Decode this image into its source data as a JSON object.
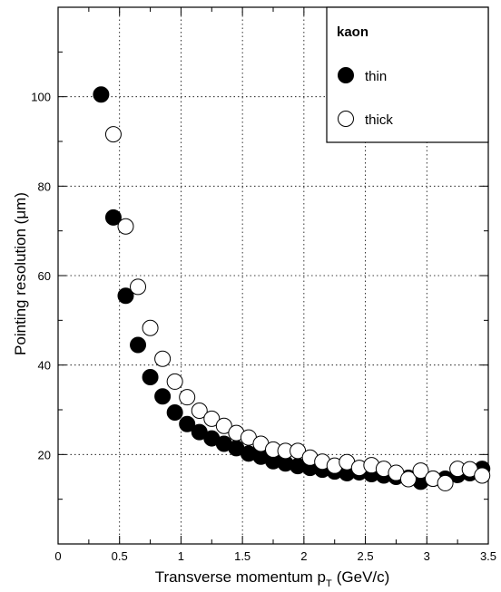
{
  "chart_data": {
    "type": "scatter",
    "title": "",
    "xlabel": "Transverse momentum p",
    "xlabel_sub": "T",
    "xlabel_unit": "(GeV/c)",
    "ylabel": "Pointing resolution (μm)",
    "xlim": [
      0,
      3.5
    ],
    "ylim": [
      0,
      120
    ],
    "x_ticks": [
      "0",
      "0.5",
      "1",
      "1.5",
      "2",
      "2.5",
      "3",
      "3.5"
    ],
    "y_ticks": [
      "20",
      "40",
      "60",
      "80",
      "100"
    ],
    "grid": true,
    "grid_style": "dotted",
    "legend_title": "kaon",
    "legend_position": "top-right",
    "series": [
      {
        "name": "thin",
        "marker": "filled-circle",
        "x": [
          0.35,
          0.45,
          0.55,
          0.65,
          0.75,
          0.85,
          0.95,
          1.05,
          1.15,
          1.25,
          1.35,
          1.45,
          1.55,
          1.65,
          1.75,
          1.85,
          1.95,
          2.05,
          2.15,
          2.25,
          2.35,
          2.45,
          2.55,
          2.65,
          2.75,
          2.85,
          2.95,
          3.05,
          3.15,
          3.25,
          3.35,
          3.45
        ],
        "y": [
          100.5,
          73,
          55.5,
          44.5,
          37.3,
          33,
          29.4,
          26.8,
          25,
          23.6,
          22.4,
          21.4,
          20.2,
          19.5,
          18.5,
          18,
          17.4,
          17,
          16.6,
          16.2,
          15.8,
          16,
          15.6,
          15.3,
          15,
          14.8,
          13.9,
          14.6,
          14.6,
          15.4,
          15.8,
          16.8
        ]
      },
      {
        "name": "thick",
        "marker": "open-circle",
        "x": [
          0.45,
          0.55,
          0.65,
          0.75,
          0.85,
          0.95,
          1.05,
          1.15,
          1.25,
          1.35,
          1.45,
          1.55,
          1.65,
          1.75,
          1.85,
          1.95,
          2.05,
          2.15,
          2.25,
          2.35,
          2.45,
          2.55,
          2.65,
          2.75,
          2.85,
          2.95,
          3.05,
          3.15,
          3.25,
          3.35,
          3.45
        ],
        "y": [
          91.6,
          71,
          57.5,
          48.3,
          41.4,
          36.3,
          32.8,
          29.8,
          28,
          26.4,
          24.8,
          23.8,
          22.4,
          21.1,
          20.8,
          20.8,
          19.3,
          18.4,
          17.5,
          18.3,
          17,
          17.6,
          16.8,
          15.9,
          14.5,
          16.4,
          14.6,
          13.6,
          16.8,
          16.7,
          15.3
        ]
      }
    ]
  }
}
